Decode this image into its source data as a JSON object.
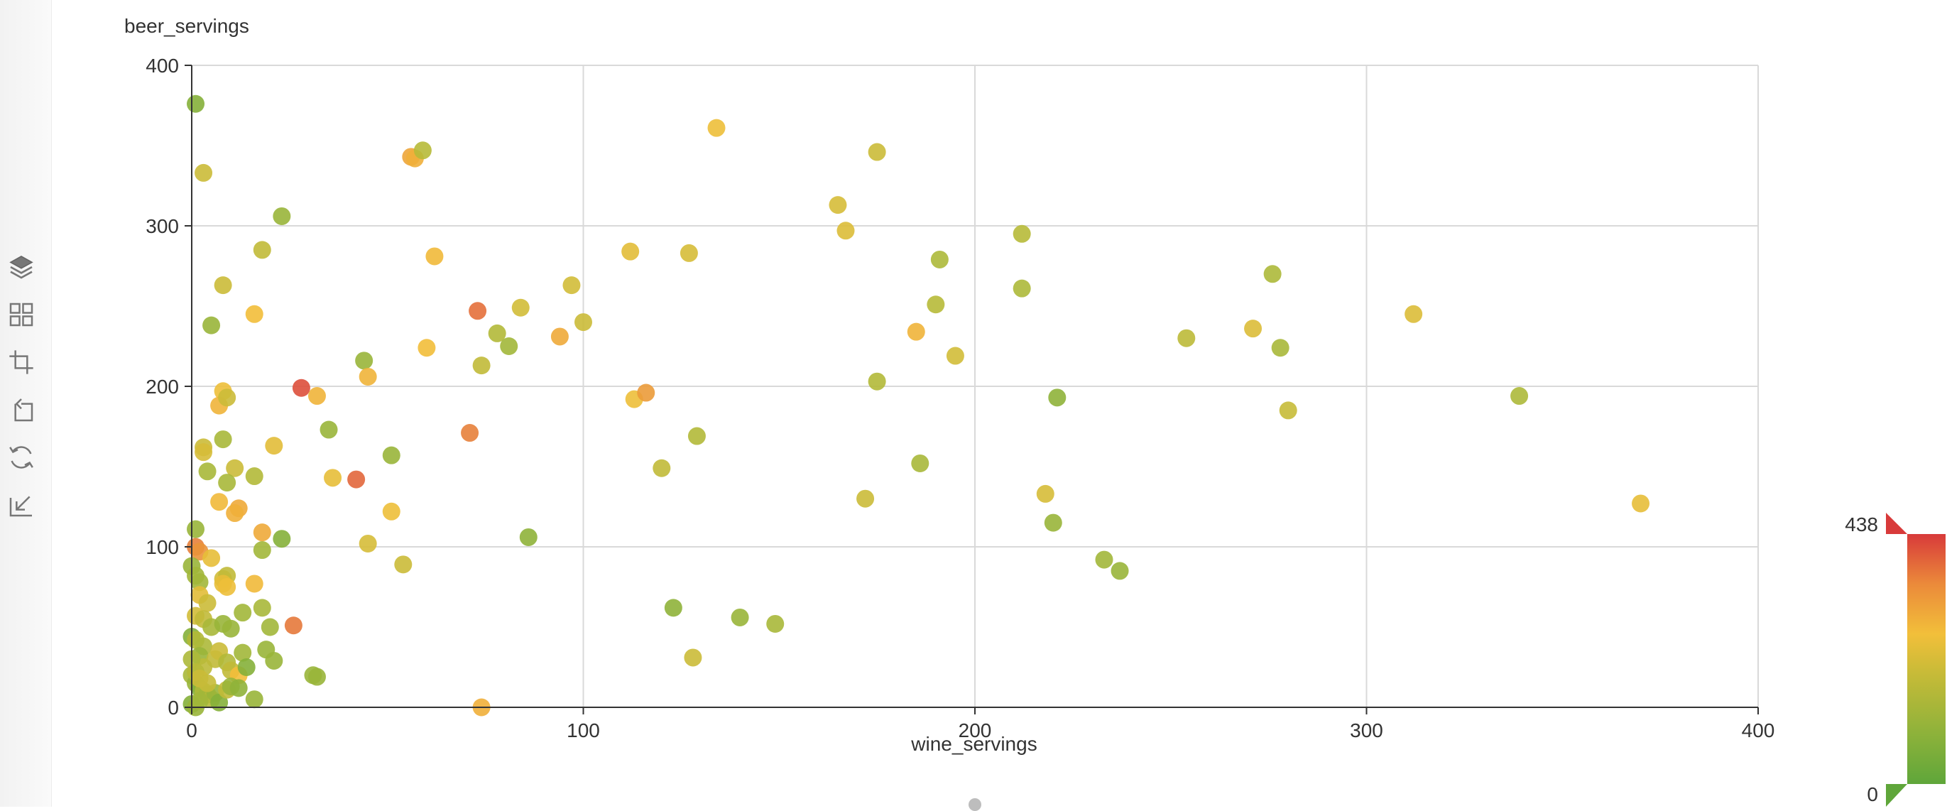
{
  "toolbox": {
    "items": [
      {
        "name": "layers-icon"
      },
      {
        "name": "grid-icon"
      },
      {
        "name": "rect-select-icon"
      },
      {
        "name": "rect-unselect-icon"
      },
      {
        "name": "restore-icon"
      },
      {
        "name": "download-icon"
      }
    ]
  },
  "chart_data": {
    "type": "scatter",
    "xlabel": "wine_servings",
    "ylabel": "beer_servings",
    "xlim": [
      0,
      400
    ],
    "ylim": [
      0,
      400
    ],
    "x_ticks": [
      0,
      100,
      200,
      300,
      400
    ],
    "y_ticks": [
      0,
      100,
      200,
      300,
      400
    ],
    "grid": true,
    "color_field_range": [
      0,
      438
    ],
    "visual_map": {
      "min": 0,
      "max": 438,
      "min_label": "0",
      "max_label": "438",
      "placement": "bottom-right"
    },
    "colors": [
      "#5fa63a",
      "#a5b83a",
      "#c9bb38",
      "#f2bf3a",
      "#eb9a3a",
      "#e05a3c",
      "#d83a3a"
    ],
    "points": [
      [
        1,
        376,
        40
      ],
      [
        3,
        333,
        150
      ],
      [
        5,
        238,
        60
      ],
      [
        8,
        263,
        150
      ],
      [
        18,
        285,
        130
      ],
      [
        23,
        306,
        60
      ],
      [
        16,
        245,
        220
      ],
      [
        8,
        197,
        210
      ],
      [
        7,
        188,
        240
      ],
      [
        9,
        193,
        150
      ],
      [
        3,
        162,
        150
      ],
      [
        3,
        159,
        170
      ],
      [
        4,
        147,
        80
      ],
      [
        8,
        167,
        80
      ],
      [
        11,
        149,
        150
      ],
      [
        9,
        140,
        80
      ],
      [
        16,
        144,
        100
      ],
      [
        21,
        163,
        190
      ],
      [
        7,
        128,
        230
      ],
      [
        12,
        124,
        260
      ],
      [
        11,
        121,
        250
      ],
      [
        1,
        111,
        60
      ],
      [
        1,
        100,
        320
      ],
      [
        2,
        97,
        300
      ],
      [
        5,
        93,
        200
      ],
      [
        0,
        88,
        60
      ],
      [
        1,
        82,
        70
      ],
      [
        2,
        78,
        70
      ],
      [
        8,
        80,
        160
      ],
      [
        9,
        82,
        130
      ],
      [
        8,
        77,
        200
      ],
      [
        9,
        75,
        210
      ],
      [
        16,
        77,
        230
      ],
      [
        18,
        109,
        260
      ],
      [
        18,
        98,
        70
      ],
      [
        23,
        105,
        40
      ],
      [
        2,
        70,
        190
      ],
      [
        4,
        65,
        150
      ],
      [
        1,
        57,
        160
      ],
      [
        3,
        55,
        130
      ],
      [
        5,
        50,
        80
      ],
      [
        8,
        52,
        60
      ],
      [
        10,
        49,
        60
      ],
      [
        13,
        59,
        70
      ],
      [
        18,
        62,
        80
      ],
      [
        20,
        50,
        70
      ],
      [
        0,
        44,
        40
      ],
      [
        1,
        42,
        100
      ],
      [
        3,
        38,
        90
      ],
      [
        2,
        32,
        60
      ],
      [
        6,
        30,
        130
      ],
      [
        7,
        35,
        150
      ],
      [
        9,
        28,
        100
      ],
      [
        13,
        34,
        70
      ],
      [
        10,
        23,
        130
      ],
      [
        12,
        20,
        220
      ],
      [
        14,
        25,
        40
      ],
      [
        19,
        36,
        60
      ],
      [
        21,
        29,
        60
      ],
      [
        0,
        20,
        80
      ],
      [
        1,
        15,
        60
      ],
      [
        2,
        12,
        40
      ],
      [
        3,
        10,
        90
      ],
      [
        4,
        8,
        70
      ],
      [
        5,
        5,
        100
      ],
      [
        6,
        9,
        60
      ],
      [
        7,
        3,
        40
      ],
      [
        9,
        11,
        130
      ],
      [
        10,
        13,
        60
      ],
      [
        12,
        12,
        50
      ],
      [
        16,
        5,
        60
      ],
      [
        0,
        2,
        40
      ],
      [
        1,
        0,
        60
      ],
      [
        2,
        4,
        70
      ],
      [
        3,
        25,
        120
      ],
      [
        0,
        30,
        90
      ],
      [
        1,
        22,
        110
      ],
      [
        2,
        18,
        150
      ],
      [
        4,
        15,
        140
      ],
      [
        31,
        20,
        60
      ],
      [
        32,
        19,
        60
      ],
      [
        26,
        51,
        330
      ],
      [
        28,
        199,
        390
      ],
      [
        32,
        194,
        240
      ],
      [
        35,
        173,
        60
      ],
      [
        36,
        143,
        200
      ],
      [
        44,
        216,
        60
      ],
      [
        45,
        206,
        240
      ],
      [
        42,
        142,
        350
      ],
      [
        45,
        102,
        170
      ],
      [
        51,
        122,
        210
      ],
      [
        51,
        157,
        60
      ],
      [
        54,
        89,
        150
      ],
      [
        56,
        343,
        270
      ],
      [
        57,
        342,
        250
      ],
      [
        59,
        347,
        110
      ],
      [
        60,
        224,
        220
      ],
      [
        62,
        281,
        230
      ],
      [
        73,
        247,
        340
      ],
      [
        71,
        171,
        320
      ],
      [
        74,
        213,
        130
      ],
      [
        78,
        233,
        100
      ],
      [
        81,
        225,
        70
      ],
      [
        84,
        249,
        160
      ],
      [
        86,
        106,
        50
      ],
      [
        74,
        0,
        250
      ],
      [
        94,
        231,
        260
      ],
      [
        97,
        263,
        160
      ],
      [
        100,
        240,
        150
      ],
      [
        112,
        284,
        190
      ],
      [
        113,
        192,
        210
      ],
      [
        116,
        196,
        290
      ],
      [
        120,
        149,
        130
      ],
      [
        123,
        62,
        50
      ],
      [
        127,
        283,
        170
      ],
      [
        128,
        31,
        150
      ],
      [
        129,
        169,
        100
      ],
      [
        134,
        361,
        210
      ],
      [
        140,
        56,
        60
      ],
      [
        149,
        52,
        80
      ],
      [
        165,
        313,
        170
      ],
      [
        167,
        297,
        180
      ],
      [
        172,
        130,
        150
      ],
      [
        175,
        346,
        150
      ],
      [
        175,
        203,
        100
      ],
      [
        185,
        234,
        240
      ],
      [
        186,
        152,
        80
      ],
      [
        190,
        251,
        110
      ],
      [
        191,
        279,
        90
      ],
      [
        195,
        219,
        160
      ],
      [
        212,
        295,
        110
      ],
      [
        212,
        261,
        90
      ],
      [
        218,
        133,
        170
      ],
      [
        220,
        115,
        60
      ],
      [
        221,
        193,
        50
      ],
      [
        233,
        92,
        70
      ],
      [
        237,
        85,
        60
      ],
      [
        254,
        230,
        120
      ],
      [
        271,
        236,
        180
      ],
      [
        276,
        270,
        90
      ],
      [
        278,
        224,
        80
      ],
      [
        280,
        185,
        140
      ],
      [
        312,
        245,
        180
      ],
      [
        339,
        194,
        90
      ],
      [
        370,
        127,
        200
      ]
    ]
  }
}
